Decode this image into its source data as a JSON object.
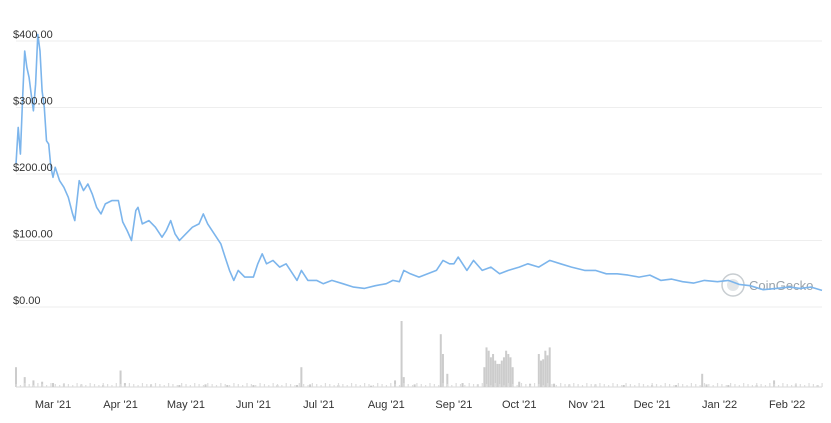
{
  "watermark": "CoinGecko",
  "colors": {
    "line": "#7cb5ec",
    "grid": "#eeeeee",
    "volume": "#cccccc",
    "axis_text": "#333333",
    "watermark": "#9aa3aa"
  },
  "chart_data": {
    "type": "line",
    "title": "",
    "xlabel": "",
    "ylabel": "",
    "ylim": [
      0,
      400
    ],
    "y_ticks": [
      {
        "value": 0,
        "label": "$0.00"
      },
      {
        "value": 100,
        "label": "$100.00"
      },
      {
        "value": 200,
        "label": "$200.00"
      },
      {
        "value": 300,
        "label": "$300.00"
      },
      {
        "value": 400,
        "label": "$400.00"
      }
    ],
    "x_range": [
      "2021-02-12",
      "2022-02-17"
    ],
    "x_ticks": [
      {
        "date": "2021-03-01",
        "label": "Mar '21"
      },
      {
        "date": "2021-04-01",
        "label": "Apr '21"
      },
      {
        "date": "2021-05-01",
        "label": "May '21"
      },
      {
        "date": "2021-06-01",
        "label": "Jun '21"
      },
      {
        "date": "2021-07-01",
        "label": "Jul '21"
      },
      {
        "date": "2021-08-01",
        "label": "Aug '21"
      },
      {
        "date": "2021-09-01",
        "label": "Sep '21"
      },
      {
        "date": "2021-10-01",
        "label": "Oct '21"
      },
      {
        "date": "2021-11-01",
        "label": "Nov '21"
      },
      {
        "date": "2021-12-01",
        "label": "Dec '21"
      },
      {
        "date": "2022-01-01",
        "label": "Jan '22"
      },
      {
        "date": "2022-02-01",
        "label": "Feb '22"
      }
    ],
    "grid": true,
    "legend": "none",
    "price_series": [
      [
        "2021-02-12",
        215
      ],
      [
        "2021-02-13",
        270
      ],
      [
        "2021-02-14",
        230
      ],
      [
        "2021-02-15",
        310
      ],
      [
        "2021-02-16",
        385
      ],
      [
        "2021-02-17",
        360
      ],
      [
        "2021-02-18",
        345
      ],
      [
        "2021-02-19",
        320
      ],
      [
        "2021-02-20",
        295
      ],
      [
        "2021-02-21",
        335
      ],
      [
        "2021-02-22",
        410
      ],
      [
        "2021-02-23",
        385
      ],
      [
        "2021-02-24",
        325
      ],
      [
        "2021-02-25",
        300
      ],
      [
        "2021-02-26",
        250
      ],
      [
        "2021-02-27",
        245
      ],
      [
        "2021-02-28",
        210
      ],
      [
        "2021-03-01",
        195
      ],
      [
        "2021-03-02",
        210
      ],
      [
        "2021-03-04",
        190
      ],
      [
        "2021-03-06",
        180
      ],
      [
        "2021-03-08",
        165
      ],
      [
        "2021-03-10",
        140
      ],
      [
        "2021-03-11",
        130
      ],
      [
        "2021-03-13",
        190
      ],
      [
        "2021-03-15",
        175
      ],
      [
        "2021-03-17",
        185
      ],
      [
        "2021-03-19",
        170
      ],
      [
        "2021-03-21",
        150
      ],
      [
        "2021-03-23",
        140
      ],
      [
        "2021-03-25",
        155
      ],
      [
        "2021-03-28",
        160
      ],
      [
        "2021-03-31",
        160
      ],
      [
        "2021-04-02",
        128
      ],
      [
        "2021-04-04",
        115
      ],
      [
        "2021-04-06",
        100
      ],
      [
        "2021-04-08",
        145
      ],
      [
        "2021-04-09",
        150
      ],
      [
        "2021-04-11",
        125
      ],
      [
        "2021-04-14",
        130
      ],
      [
        "2021-04-17",
        120
      ],
      [
        "2021-04-20",
        105
      ],
      [
        "2021-04-22",
        115
      ],
      [
        "2021-04-24",
        130
      ],
      [
        "2021-04-26",
        110
      ],
      [
        "2021-04-28",
        100
      ],
      [
        "2021-05-01",
        110
      ],
      [
        "2021-05-04",
        120
      ],
      [
        "2021-05-07",
        125
      ],
      [
        "2021-05-09",
        140
      ],
      [
        "2021-05-11",
        125
      ],
      [
        "2021-05-14",
        110
      ],
      [
        "2021-05-17",
        95
      ],
      [
        "2021-05-19",
        75
      ],
      [
        "2021-05-21",
        55
      ],
      [
        "2021-05-23",
        40
      ],
      [
        "2021-05-25",
        55
      ],
      [
        "2021-05-28",
        45
      ],
      [
        "2021-06-01",
        45
      ],
      [
        "2021-06-03",
        65
      ],
      [
        "2021-06-05",
        80
      ],
      [
        "2021-06-07",
        65
      ],
      [
        "2021-06-10",
        70
      ],
      [
        "2021-06-13",
        60
      ],
      [
        "2021-06-16",
        65
      ],
      [
        "2021-06-19",
        50
      ],
      [
        "2021-06-21",
        40
      ],
      [
        "2021-06-23",
        55
      ],
      [
        "2021-06-26",
        40
      ],
      [
        "2021-06-30",
        40
      ],
      [
        "2021-07-03",
        35
      ],
      [
        "2021-07-07",
        40
      ],
      [
        "2021-07-12",
        35
      ],
      [
        "2021-07-17",
        30
      ],
      [
        "2021-07-22",
        28
      ],
      [
        "2021-07-27",
        32
      ],
      [
        "2021-08-01",
        35
      ],
      [
        "2021-08-04",
        40
      ],
      [
        "2021-08-07",
        38
      ],
      [
        "2021-08-09",
        55
      ],
      [
        "2021-08-12",
        50
      ],
      [
        "2021-08-16",
        45
      ],
      [
        "2021-08-20",
        50
      ],
      [
        "2021-08-24",
        55
      ],
      [
        "2021-08-27",
        70
      ],
      [
        "2021-08-30",
        65
      ],
      [
        "2021-09-01",
        65
      ],
      [
        "2021-09-03",
        75
      ],
      [
        "2021-09-07",
        55
      ],
      [
        "2021-09-10",
        70
      ],
      [
        "2021-09-14",
        55
      ],
      [
        "2021-09-18",
        60
      ],
      [
        "2021-09-22",
        50
      ],
      [
        "2021-09-26",
        55
      ],
      [
        "2021-10-01",
        60
      ],
      [
        "2021-10-05",
        65
      ],
      [
        "2021-10-10",
        60
      ],
      [
        "2021-10-15",
        70
      ],
      [
        "2021-10-20",
        65
      ],
      [
        "2021-10-25",
        60
      ],
      [
        "2021-10-31",
        55
      ],
      [
        "2021-11-05",
        55
      ],
      [
        "2021-11-10",
        50
      ],
      [
        "2021-11-15",
        50
      ],
      [
        "2021-11-20",
        48
      ],
      [
        "2021-11-25",
        45
      ],
      [
        "2021-11-30",
        48
      ],
      [
        "2021-12-05",
        40
      ],
      [
        "2021-12-10",
        42
      ],
      [
        "2021-12-15",
        38
      ],
      [
        "2021-12-20",
        36
      ],
      [
        "2021-12-25",
        40
      ],
      [
        "2021-12-31",
        38
      ],
      [
        "2022-01-05",
        40
      ],
      [
        "2022-01-10",
        34
      ],
      [
        "2022-01-15",
        32
      ],
      [
        "2022-01-21",
        26
      ],
      [
        "2022-01-27",
        28
      ],
      [
        "2022-02-02",
        30
      ],
      [
        "2022-02-07",
        28
      ],
      [
        "2022-02-12",
        30
      ],
      [
        "2022-02-17",
        25
      ]
    ],
    "volume_unit": "relative (0-100)",
    "volume_series": [
      [
        "2021-02-12",
        30
      ],
      [
        "2021-02-16",
        15
      ],
      [
        "2021-02-20",
        10
      ],
      [
        "2021-02-24",
        8
      ],
      [
        "2021-03-01",
        6
      ],
      [
        "2021-03-06",
        5
      ],
      [
        "2021-03-14",
        4
      ],
      [
        "2021-03-24",
        3
      ],
      [
        "2021-04-01",
        25
      ],
      [
        "2021-04-03",
        6
      ],
      [
        "2021-04-15",
        4
      ],
      [
        "2021-04-28",
        3
      ],
      [
        "2021-05-10",
        4
      ],
      [
        "2021-05-20",
        3
      ],
      [
        "2021-06-01",
        3
      ],
      [
        "2021-06-12",
        3
      ],
      [
        "2021-06-21",
        3
      ],
      [
        "2021-06-23",
        30
      ],
      [
        "2021-06-27",
        4
      ],
      [
        "2021-07-10",
        3
      ],
      [
        "2021-07-25",
        2
      ],
      [
        "2021-08-05",
        10
      ],
      [
        "2021-08-08",
        100
      ],
      [
        "2021-08-09",
        15
      ],
      [
        "2021-08-14",
        4
      ],
      [
        "2021-08-26",
        80
      ],
      [
        "2021-08-27",
        50
      ],
      [
        "2021-08-29",
        20
      ],
      [
        "2021-09-05",
        6
      ],
      [
        "2021-09-12",
        4
      ],
      [
        "2021-09-15",
        30
      ],
      [
        "2021-09-16",
        60
      ],
      [
        "2021-09-17",
        55
      ],
      [
        "2021-09-18",
        45
      ],
      [
        "2021-09-19",
        50
      ],
      [
        "2021-09-20",
        40
      ],
      [
        "2021-09-21",
        35
      ],
      [
        "2021-09-22",
        35
      ],
      [
        "2021-09-23",
        40
      ],
      [
        "2021-09-24",
        45
      ],
      [
        "2021-09-25",
        55
      ],
      [
        "2021-09-26",
        50
      ],
      [
        "2021-09-27",
        45
      ],
      [
        "2021-09-28",
        30
      ],
      [
        "2021-10-01",
        8
      ],
      [
        "2021-10-06",
        5
      ],
      [
        "2021-10-10",
        50
      ],
      [
        "2021-10-11",
        40
      ],
      [
        "2021-10-12",
        42
      ],
      [
        "2021-10-13",
        55
      ],
      [
        "2021-10-14",
        48
      ],
      [
        "2021-10-15",
        60
      ],
      [
        "2021-10-17",
        5
      ],
      [
        "2021-10-24",
        4
      ],
      [
        "2021-11-05",
        4
      ],
      [
        "2021-11-18",
        3
      ],
      [
        "2021-12-01",
        3
      ],
      [
        "2021-12-12",
        3
      ],
      [
        "2021-12-24",
        20
      ],
      [
        "2021-12-26",
        4
      ],
      [
        "2022-01-05",
        3
      ],
      [
        "2022-01-18",
        3
      ],
      [
        "2022-01-26",
        10
      ],
      [
        "2022-02-05",
        4
      ],
      [
        "2022-02-15",
        3
      ]
    ]
  }
}
